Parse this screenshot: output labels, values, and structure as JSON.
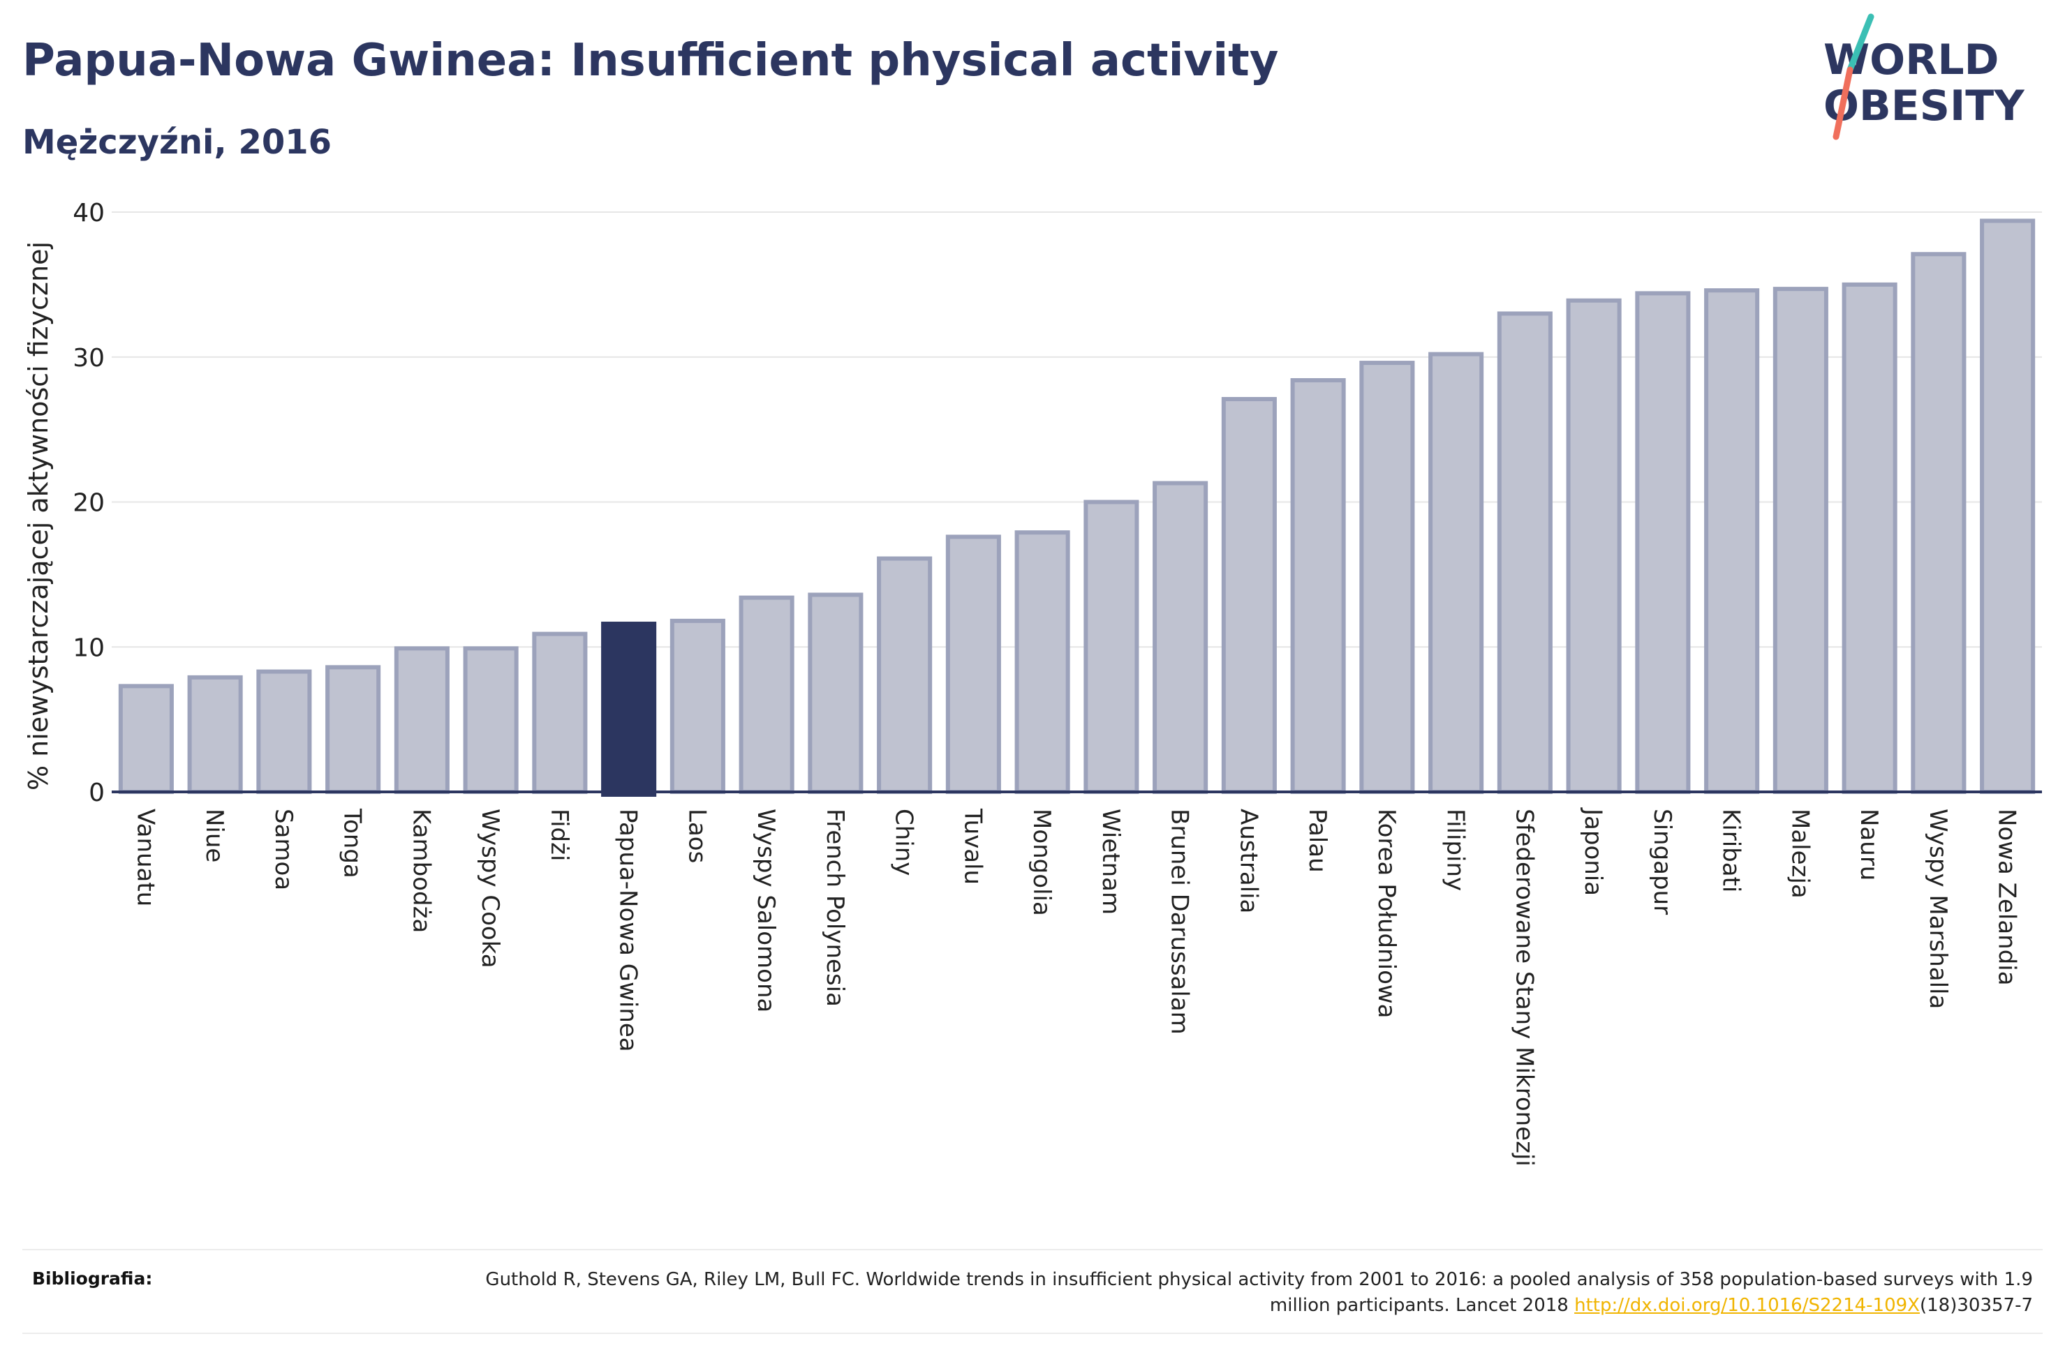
{
  "header": {
    "title": "Papua-Nowa Gwinea: Insufficient physical activity",
    "subtitle": "Mężczyźni, 2016"
  },
  "logo": {
    "line1": "WORLD",
    "line2": "OBESITY",
    "colors": {
      "text": "#2c3660",
      "slash_teal": "#3bbfb4",
      "slash_coral": "#f06f5c"
    }
  },
  "chart_data": {
    "type": "bar",
    "ylabel": "% niewystarczającej aktywności fizycznej",
    "xlabel": "",
    "ylim": [
      0,
      40
    ],
    "yticks": [
      0,
      10,
      20,
      30,
      40
    ],
    "grid": true,
    "highlight": "Papua-Nowa Gwinea",
    "colors": {
      "bar": "#bfc2d0",
      "bar_edge": "#9ca2bb",
      "highlight": "#2c3660",
      "axis": "#2c3660",
      "grid": "#e6e6e6"
    },
    "categories": [
      "Vanuatu",
      "Niue",
      "Samoa",
      "Tonga",
      "Kambodża",
      "Wyspy Cooka",
      "Fidżi",
      "Papua-Nowa Gwinea",
      "Laos",
      "Wyspy Salomona",
      "French Polynesia",
      "Chiny",
      "Tuvalu",
      "Mongolia",
      "Wietnam",
      "Brunei Darussalam",
      "Australia",
      "Palau",
      "Korea Południowa",
      "Filipiny",
      "Sfederowane Stany Mikronezji",
      "Japonia",
      "Singapur",
      "Kiribati",
      "Malezja",
      "Nauru",
      "Wyspy Marshalla",
      "Nowa Zelandia"
    ],
    "values": [
      7.3,
      7.9,
      8.3,
      8.6,
      9.9,
      9.9,
      10.9,
      11.6,
      11.8,
      13.4,
      13.6,
      16.1,
      17.6,
      17.9,
      20.0,
      21.3,
      27.1,
      28.4,
      29.6,
      30.2,
      33.0,
      33.9,
      34.4,
      34.6,
      34.7,
      35.0,
      37.1,
      39.4
    ]
  },
  "references": {
    "label": "Bibliografia:",
    "text_before": "Guthold R, Stevens GA, Riley LM, Bull FC. Worldwide trends in insufficient physical activity from 2001 to 2016: a pooled analysis of 358 population-based surveys with 1.9 million participants. Lancet 2018 ",
    "link": "http://dx.doi.org/10.1016/S2214-109X",
    "text_after": "(18)30357-7"
  }
}
